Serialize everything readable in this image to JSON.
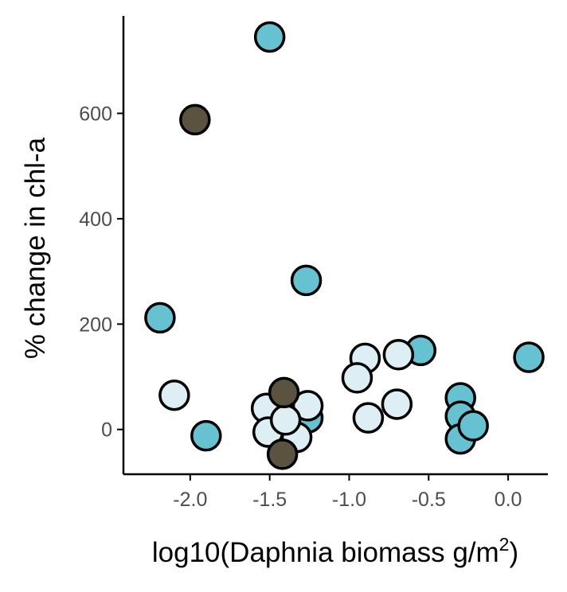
{
  "chart_data": {
    "type": "scatter",
    "title": "",
    "xlabel": "log10(Daphnia biomass g/m",
    "xlabel_superscript": "2",
    "xlabel_suffix": ")",
    "ylabel": "% change in chl-a",
    "xlim": [
      -2.42,
      0.25
    ],
    "ylim": [
      -85,
      785
    ],
    "x_ticks": [
      -2.0,
      -1.5,
      -1.0,
      -0.5,
      0.0
    ],
    "x_tick_labels": [
      "-2.0",
      "-1.5",
      "-1.0",
      "-0.5",
      "0.0"
    ],
    "y_ticks": [
      0,
      200,
      400,
      600
    ],
    "y_tick_labels": [
      "0",
      "200",
      "400",
      "600"
    ],
    "grid": false,
    "legend": "none",
    "colors": {
      "teal": "#66c1d1",
      "light": "#ddeef4",
      "dark": "#5a5340",
      "outline": "#000000"
    },
    "series": [
      {
        "color": "teal",
        "points": [
          {
            "x": -1.5,
            "y": 745
          },
          {
            "x": -1.27,
            "y": 283
          },
          {
            "x": -2.19,
            "y": 212
          },
          {
            "x": -1.9,
            "y": -12
          },
          {
            "x": -0.55,
            "y": 150
          },
          {
            "x": 0.13,
            "y": 137
          },
          {
            "x": -0.3,
            "y": 60
          },
          {
            "x": -0.3,
            "y": 25
          },
          {
            "x": -0.3,
            "y": -18
          },
          {
            "x": -0.22,
            "y": 7
          },
          {
            "x": -1.48,
            "y": 28
          },
          {
            "x": -1.26,
            "y": 22
          }
        ]
      },
      {
        "color": "light",
        "points": [
          {
            "x": -2.1,
            "y": 65
          },
          {
            "x": -1.52,
            "y": 40
          },
          {
            "x": -1.51,
            "y": -5
          },
          {
            "x": -1.33,
            "y": -15
          },
          {
            "x": -1.26,
            "y": 45
          },
          {
            "x": -0.9,
            "y": 135
          },
          {
            "x": -0.95,
            "y": 98
          },
          {
            "x": -0.88,
            "y": 22
          },
          {
            "x": -0.69,
            "y": 142
          },
          {
            "x": -0.7,
            "y": 48
          },
          {
            "x": -1.4,
            "y": 18
          }
        ]
      },
      {
        "color": "dark",
        "points": [
          {
            "x": -1.97,
            "y": 588
          },
          {
            "x": -1.41,
            "y": 70
          },
          {
            "x": -1.42,
            "y": -47
          }
        ]
      }
    ]
  }
}
